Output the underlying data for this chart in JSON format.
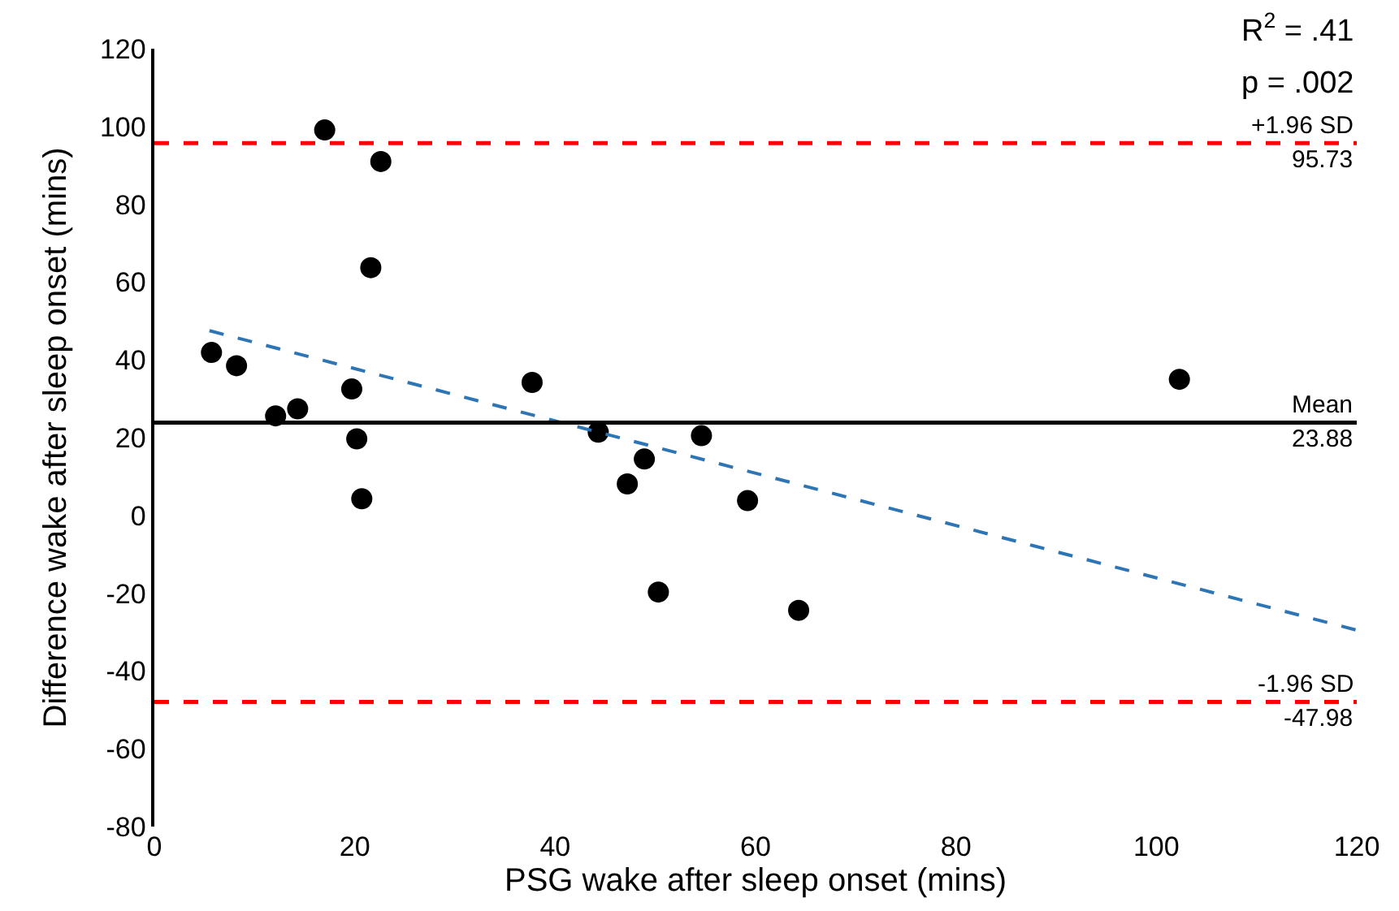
{
  "chart_data": {
    "type": "scatter",
    "xlabel": "PSG wake after sleep onset (mins)",
    "ylabel": "Difference wake after sleep onset (mins)",
    "series": [
      {
        "color": "#000000",
        "marker": "circle",
        "x": [
          5.7,
          8.2,
          12.1,
          14.3,
          17.0,
          19.7,
          20.2,
          20.7,
          21.6,
          22.6,
          37.7,
          44.3,
          47.2,
          48.9,
          50.3,
          54.6,
          59.2,
          64.3,
          102.3
        ],
        "values": [
          41.9,
          38.5,
          25.6,
          27.4,
          99.1,
          32.5,
          19.7,
          4.3,
          63.7,
          91.0,
          34.2,
          21.4,
          8.1,
          14.5,
          -19.7,
          20.5,
          3.8,
          -24.4,
          35.0
        ]
      },
      {
        "type": "line",
        "color": "#2e75b6",
        "line_style": "dashed",
        "marker": "none",
        "x": [
          5.5,
          120
        ],
        "values": [
          47.5,
          -29.5
        ]
      }
    ],
    "ref_lines": [
      {
        "axis": "y",
        "value": 95.73,
        "label": "+1.96 SD\n95.73",
        "color": "#ff0000",
        "line_style": "dashed"
      },
      {
        "axis": "y",
        "value": 23.88,
        "label": "Mean\n23.88",
        "color": "#000000",
        "line_style": "solid"
      },
      {
        "axis": "y",
        "value": -47.98,
        "label": "-1.96 SD\n-47.98",
        "color": "#ff0000",
        "line_style": "dashed"
      }
    ],
    "annotations": [
      "R$^{2}$ = .41",
      "p = .002"
    ],
    "xlim": [
      0,
      120
    ],
    "xticks": [
      0,
      20,
      40,
      60,
      80,
      100,
      120
    ],
    "ylim": [
      -80,
      120
    ],
    "yticks": [
      -80,
      -60,
      -40,
      -20,
      0,
      20,
      40,
      60,
      80,
      100,
      120
    ]
  }
}
